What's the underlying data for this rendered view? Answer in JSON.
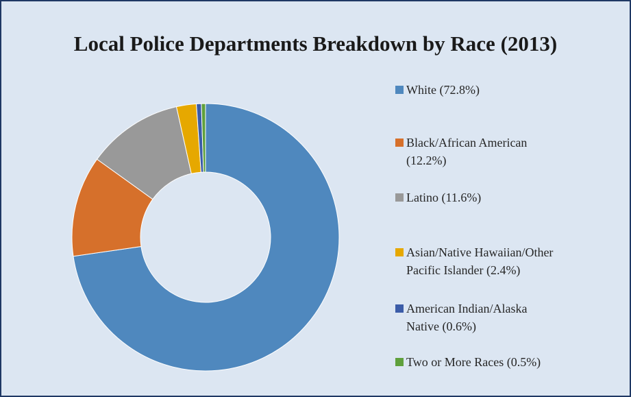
{
  "chart_data": {
    "type": "pie",
    "title": "Local Police Departments Breakdown by Race (2013)",
    "donut": true,
    "categories": [
      "White",
      "Black/African American",
      "Latino",
      "Asian/Native Hawaiian/Other Pacific Islander",
      "American Indian/Alaska Native",
      "Two or More Races"
    ],
    "values": [
      72.8,
      12.2,
      11.6,
      2.4,
      0.6,
      0.5
    ],
    "colors": [
      "#4f88be",
      "#d6702b",
      "#999999",
      "#e6a800",
      "#3b5ca8",
      "#5fa03c"
    ],
    "legend_position": "right",
    "legend": [
      {
        "line1": "White (72.8%)",
        "line2": ""
      },
      {
        "line1": "Black/African American",
        "line2": "(12.2%)"
      },
      {
        "line1": "Latino (11.6%)",
        "line2": ""
      },
      {
        "line1": "Asian/Native Hawaiian/Other",
        "line2": "Pacific Islander  (2.4%)"
      },
      {
        "line1": "American Indian/Alaska",
        "line2": "Native (0.6%)"
      },
      {
        "line1": "Two or More Races (0.5%)",
        "line2": ""
      }
    ]
  },
  "colors": {
    "background": "#dce6f2",
    "border": "#1f3864",
    "text": "#262626"
  }
}
